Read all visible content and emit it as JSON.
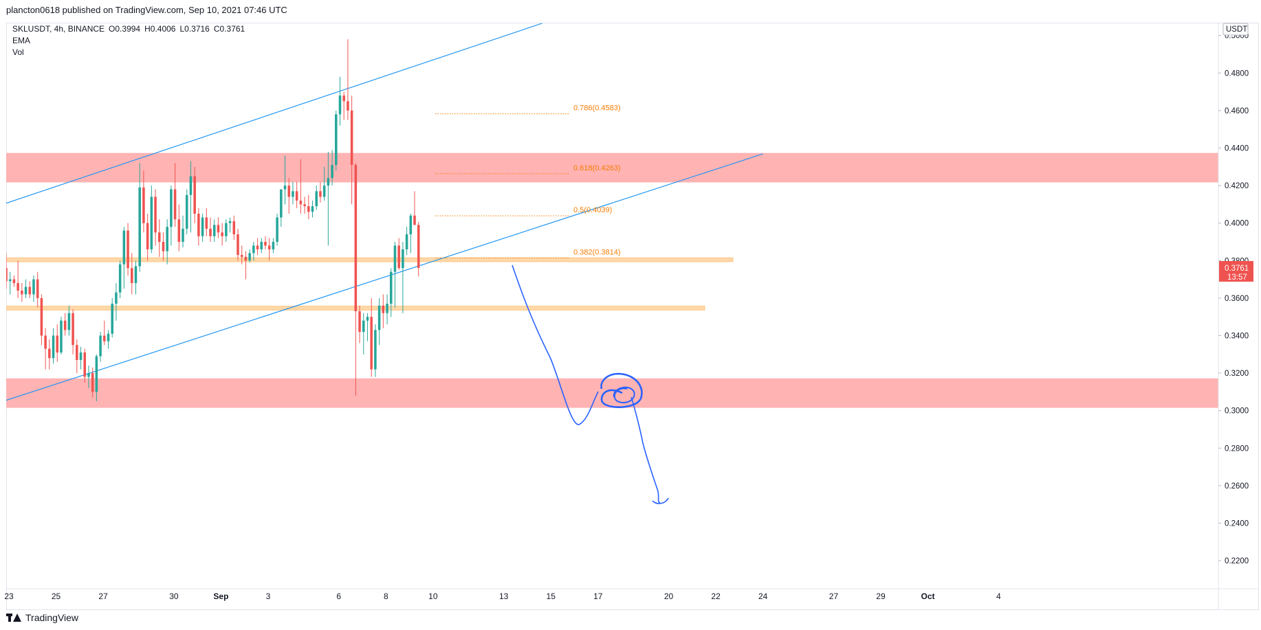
{
  "header": {
    "publisher_line": "plancton0618 published on TradingView.com, Sep 10, 2021 07:46 UTC"
  },
  "legend": {
    "symbol": "SKLUSDT, 4h, BINANCE",
    "open": "O0.3994",
    "high": "H0.4006",
    "low": "L0.3716",
    "close": "C0.3761",
    "indicator_1": "EMA",
    "indicator_2": "Vol"
  },
  "footer": {
    "brand": "TradingView"
  },
  "colors": {
    "up": "#26a69a",
    "down": "#ef5350",
    "channel": "#2196f3",
    "fib": "#f57c00",
    "red_zone": "#ffb3b3",
    "orange_zone": "#ffd8a8",
    "drawing": "#2962ff",
    "price_tag": "#ef5350"
  },
  "chart_data": {
    "type": "candlestick",
    "currency_label": "USDT",
    "ylim": [
      0.205,
      0.5065
    ],
    "y_ticks": [
      "0.5000",
      "0.4800",
      "0.4600",
      "0.4400",
      "0.4200",
      "0.4000",
      "0.3800",
      "0.3600",
      "0.3400",
      "0.3200",
      "0.3000",
      "0.2800",
      "0.2600",
      "0.2400",
      "0.2200"
    ],
    "x_ticks": [
      {
        "label": "23",
        "date": "2021-08-23"
      },
      {
        "label": "25",
        "date": "2021-08-25"
      },
      {
        "label": "27",
        "date": "2021-08-27"
      },
      {
        "label": "30",
        "date": "2021-08-30"
      },
      {
        "label": "Sep",
        "date": "2021-09-01"
      },
      {
        "label": "3",
        "date": "2021-09-03"
      },
      {
        "label": "6",
        "date": "2021-09-06"
      },
      {
        "label": "8",
        "date": "2021-09-08"
      },
      {
        "label": "10",
        "date": "2021-09-10"
      },
      {
        "label": "13",
        "date": "2021-09-13"
      },
      {
        "label": "15",
        "date": "2021-09-15"
      },
      {
        "label": "17",
        "date": "2021-09-17"
      },
      {
        "label": "20",
        "date": "2021-09-20"
      },
      {
        "label": "22",
        "date": "2021-09-22"
      },
      {
        "label": "24",
        "date": "2021-09-24"
      },
      {
        "label": "27",
        "date": "2021-09-27"
      },
      {
        "label": "29",
        "date": "2021-09-29"
      },
      {
        "label": "Oct",
        "date": "2021-10-01"
      },
      {
        "label": "4",
        "date": "2021-10-04"
      }
    ],
    "first_candle": "2021-08-23 00:00",
    "candle_interval_hours": 4,
    "candles": [
      [
        0.376,
        0.384,
        0.365,
        0.369
      ],
      [
        0.369,
        0.374,
        0.362,
        0.37
      ],
      [
        0.37,
        0.372,
        0.366,
        0.368
      ],
      [
        0.368,
        0.38,
        0.36,
        0.364
      ],
      [
        0.364,
        0.368,
        0.358,
        0.362
      ],
      [
        0.362,
        0.37,
        0.36,
        0.366
      ],
      [
        0.366,
        0.369,
        0.36,
        0.362
      ],
      [
        0.362,
        0.372,
        0.358,
        0.37
      ],
      [
        0.37,
        0.374,
        0.355,
        0.36
      ],
      [
        0.36,
        0.362,
        0.335,
        0.34
      ],
      [
        0.34,
        0.344,
        0.322,
        0.333
      ],
      [
        0.333,
        0.338,
        0.322,
        0.328
      ],
      [
        0.328,
        0.344,
        0.325,
        0.34
      ],
      [
        0.34,
        0.346,
        0.326,
        0.331
      ],
      [
        0.331,
        0.35,
        0.33,
        0.348
      ],
      [
        0.348,
        0.352,
        0.34,
        0.343
      ],
      [
        0.343,
        0.356,
        0.34,
        0.352
      ],
      [
        0.352,
        0.354,
        0.33,
        0.335
      ],
      [
        0.335,
        0.338,
        0.32,
        0.327
      ],
      [
        0.327,
        0.334,
        0.322,
        0.331
      ],
      [
        0.331,
        0.333,
        0.315,
        0.318
      ],
      [
        0.318,
        0.324,
        0.312,
        0.32
      ],
      [
        0.32,
        0.323,
        0.307,
        0.31
      ],
      [
        0.31,
        0.33,
        0.305,
        0.329
      ],
      [
        0.329,
        0.342,
        0.326,
        0.34
      ],
      [
        0.34,
        0.348,
        0.335,
        0.337
      ],
      [
        0.337,
        0.343,
        0.333,
        0.341
      ],
      [
        0.341,
        0.36,
        0.339,
        0.357
      ],
      [
        0.357,
        0.368,
        0.348,
        0.363
      ],
      [
        0.363,
        0.38,
        0.36,
        0.378
      ],
      [
        0.378,
        0.398,
        0.365,
        0.396
      ],
      [
        0.396,
        0.4,
        0.372,
        0.376
      ],
      [
        0.376,
        0.384,
        0.362,
        0.368
      ],
      [
        0.368,
        0.38,
        0.362,
        0.377
      ],
      [
        0.377,
        0.432,
        0.374,
        0.419
      ],
      [
        0.419,
        0.428,
        0.395,
        0.4
      ],
      [
        0.4,
        0.405,
        0.38,
        0.386
      ],
      [
        0.386,
        0.42,
        0.384,
        0.414
      ],
      [
        0.414,
        0.418,
        0.388,
        0.395
      ],
      [
        0.395,
        0.402,
        0.382,
        0.39
      ],
      [
        0.39,
        0.395,
        0.38,
        0.385
      ],
      [
        0.385,
        0.402,
        0.378,
        0.398
      ],
      [
        0.398,
        0.42,
        0.388,
        0.418
      ],
      [
        0.418,
        0.432,
        0.398,
        0.402
      ],
      [
        0.402,
        0.41,
        0.385,
        0.39
      ],
      [
        0.39,
        0.404,
        0.387,
        0.397
      ],
      [
        0.397,
        0.418,
        0.394,
        0.415
      ],
      [
        0.415,
        0.433,
        0.395,
        0.425
      ],
      [
        0.425,
        0.43,
        0.4,
        0.405
      ],
      [
        0.405,
        0.408,
        0.388,
        0.393
      ],
      [
        0.393,
        0.405,
        0.39,
        0.403
      ],
      [
        0.403,
        0.408,
        0.393,
        0.397
      ],
      [
        0.397,
        0.403,
        0.39,
        0.393
      ],
      [
        0.393,
        0.402,
        0.39,
        0.399
      ],
      [
        0.399,
        0.403,
        0.392,
        0.395
      ],
      [
        0.395,
        0.4,
        0.388,
        0.393
      ],
      [
        0.393,
        0.402,
        0.39,
        0.4
      ],
      [
        0.4,
        0.403,
        0.395,
        0.401
      ],
      [
        0.401,
        0.404,
        0.391,
        0.394
      ],
      [
        0.394,
        0.397,
        0.38,
        0.383
      ],
      [
        0.383,
        0.388,
        0.378,
        0.382
      ],
      [
        0.382,
        0.385,
        0.37,
        0.38
      ],
      [
        0.38,
        0.386,
        0.379,
        0.384
      ],
      [
        0.384,
        0.39,
        0.38,
        0.388
      ],
      [
        0.388,
        0.392,
        0.383,
        0.386
      ],
      [
        0.386,
        0.392,
        0.384,
        0.39
      ],
      [
        0.39,
        0.393,
        0.386,
        0.388
      ],
      [
        0.388,
        0.392,
        0.38,
        0.386
      ],
      [
        0.386,
        0.392,
        0.384,
        0.39
      ],
      [
        0.39,
        0.405,
        0.388,
        0.403
      ],
      [
        0.403,
        0.418,
        0.398,
        0.418
      ],
      [
        0.418,
        0.436,
        0.41,
        0.42
      ],
      [
        0.42,
        0.424,
        0.405,
        0.414
      ],
      [
        0.414,
        0.422,
        0.41,
        0.417
      ],
      [
        0.417,
        0.422,
        0.408,
        0.412
      ],
      [
        0.412,
        0.434,
        0.405,
        0.41
      ],
      [
        0.41,
        0.414,
        0.405,
        0.409
      ],
      [
        0.409,
        0.415,
        0.402,
        0.406
      ],
      [
        0.406,
        0.412,
        0.403,
        0.409
      ],
      [
        0.409,
        0.42,
        0.407,
        0.417
      ],
      [
        0.417,
        0.422,
        0.411,
        0.414
      ],
      [
        0.414,
        0.43,
        0.412,
        0.42
      ],
      [
        0.42,
        0.438,
        0.388,
        0.424
      ],
      [
        0.424,
        0.439,
        0.42,
        0.431
      ],
      [
        0.431,
        0.46,
        0.428,
        0.458
      ],
      [
        0.458,
        0.478,
        0.452,
        0.468
      ],
      [
        0.468,
        0.47,
        0.455,
        0.465
      ],
      [
        0.465,
        0.498,
        0.455,
        0.46
      ],
      [
        0.46,
        0.468,
        0.41,
        0.431
      ],
      [
        0.431,
        0.432,
        0.308,
        0.353
      ],
      [
        0.353,
        0.356,
        0.336,
        0.342
      ],
      [
        0.342,
        0.352,
        0.33,
        0.348
      ],
      [
        0.348,
        0.352,
        0.337,
        0.35
      ],
      [
        0.35,
        0.36,
        0.318,
        0.322
      ],
      [
        0.322,
        0.346,
        0.318,
        0.343
      ],
      [
        0.343,
        0.36,
        0.335,
        0.356
      ],
      [
        0.356,
        0.362,
        0.344,
        0.352
      ],
      [
        0.352,
        0.362,
        0.346,
        0.357
      ],
      [
        0.357,
        0.376,
        0.35,
        0.374
      ],
      [
        0.374,
        0.39,
        0.355,
        0.388
      ],
      [
        0.388,
        0.392,
        0.375,
        0.376
      ],
      [
        0.376,
        0.39,
        0.352,
        0.386
      ],
      [
        0.386,
        0.398,
        0.383,
        0.394
      ],
      [
        0.394,
        0.405,
        0.384,
        0.404
      ],
      [
        0.404,
        0.417,
        0.399,
        0.399
      ],
      [
        0.399,
        0.4006,
        0.3716,
        0.3761
      ]
    ],
    "zones": [
      {
        "kind": "red",
        "from": 0.4217,
        "to": 0.4374
      },
      {
        "kind": "orange",
        "from": 0.3794,
        "to": 0.3815
      },
      {
        "kind": "orange",
        "from": 0.3536,
        "to": 0.3557
      },
      {
        "kind": "red",
        "from": 0.3015,
        "to": 0.3172
      }
    ],
    "fib_levels": [
      {
        "label": "0.786(0.4583)",
        "price": 0.4583
      },
      {
        "label": "0.618(0.4263)",
        "price": 0.4263
      },
      {
        "label": "0.5(0.4039)",
        "price": 0.4039
      },
      {
        "label": "0.382(0.3814)",
        "price": 0.3814
      }
    ],
    "channel_lines": [
      {
        "from": [
          "2021-08-23 00:00",
          0.4106
        ],
        "to": [
          "2021-09-14 16:00",
          0.5067
        ]
      },
      {
        "from": [
          "2021-08-23 00:00",
          0.3055
        ],
        "to": [
          "2021-09-24 00:00",
          0.4369
        ]
      }
    ],
    "last_price": {
      "value": "0.3761",
      "countdown": "13:57"
    }
  }
}
